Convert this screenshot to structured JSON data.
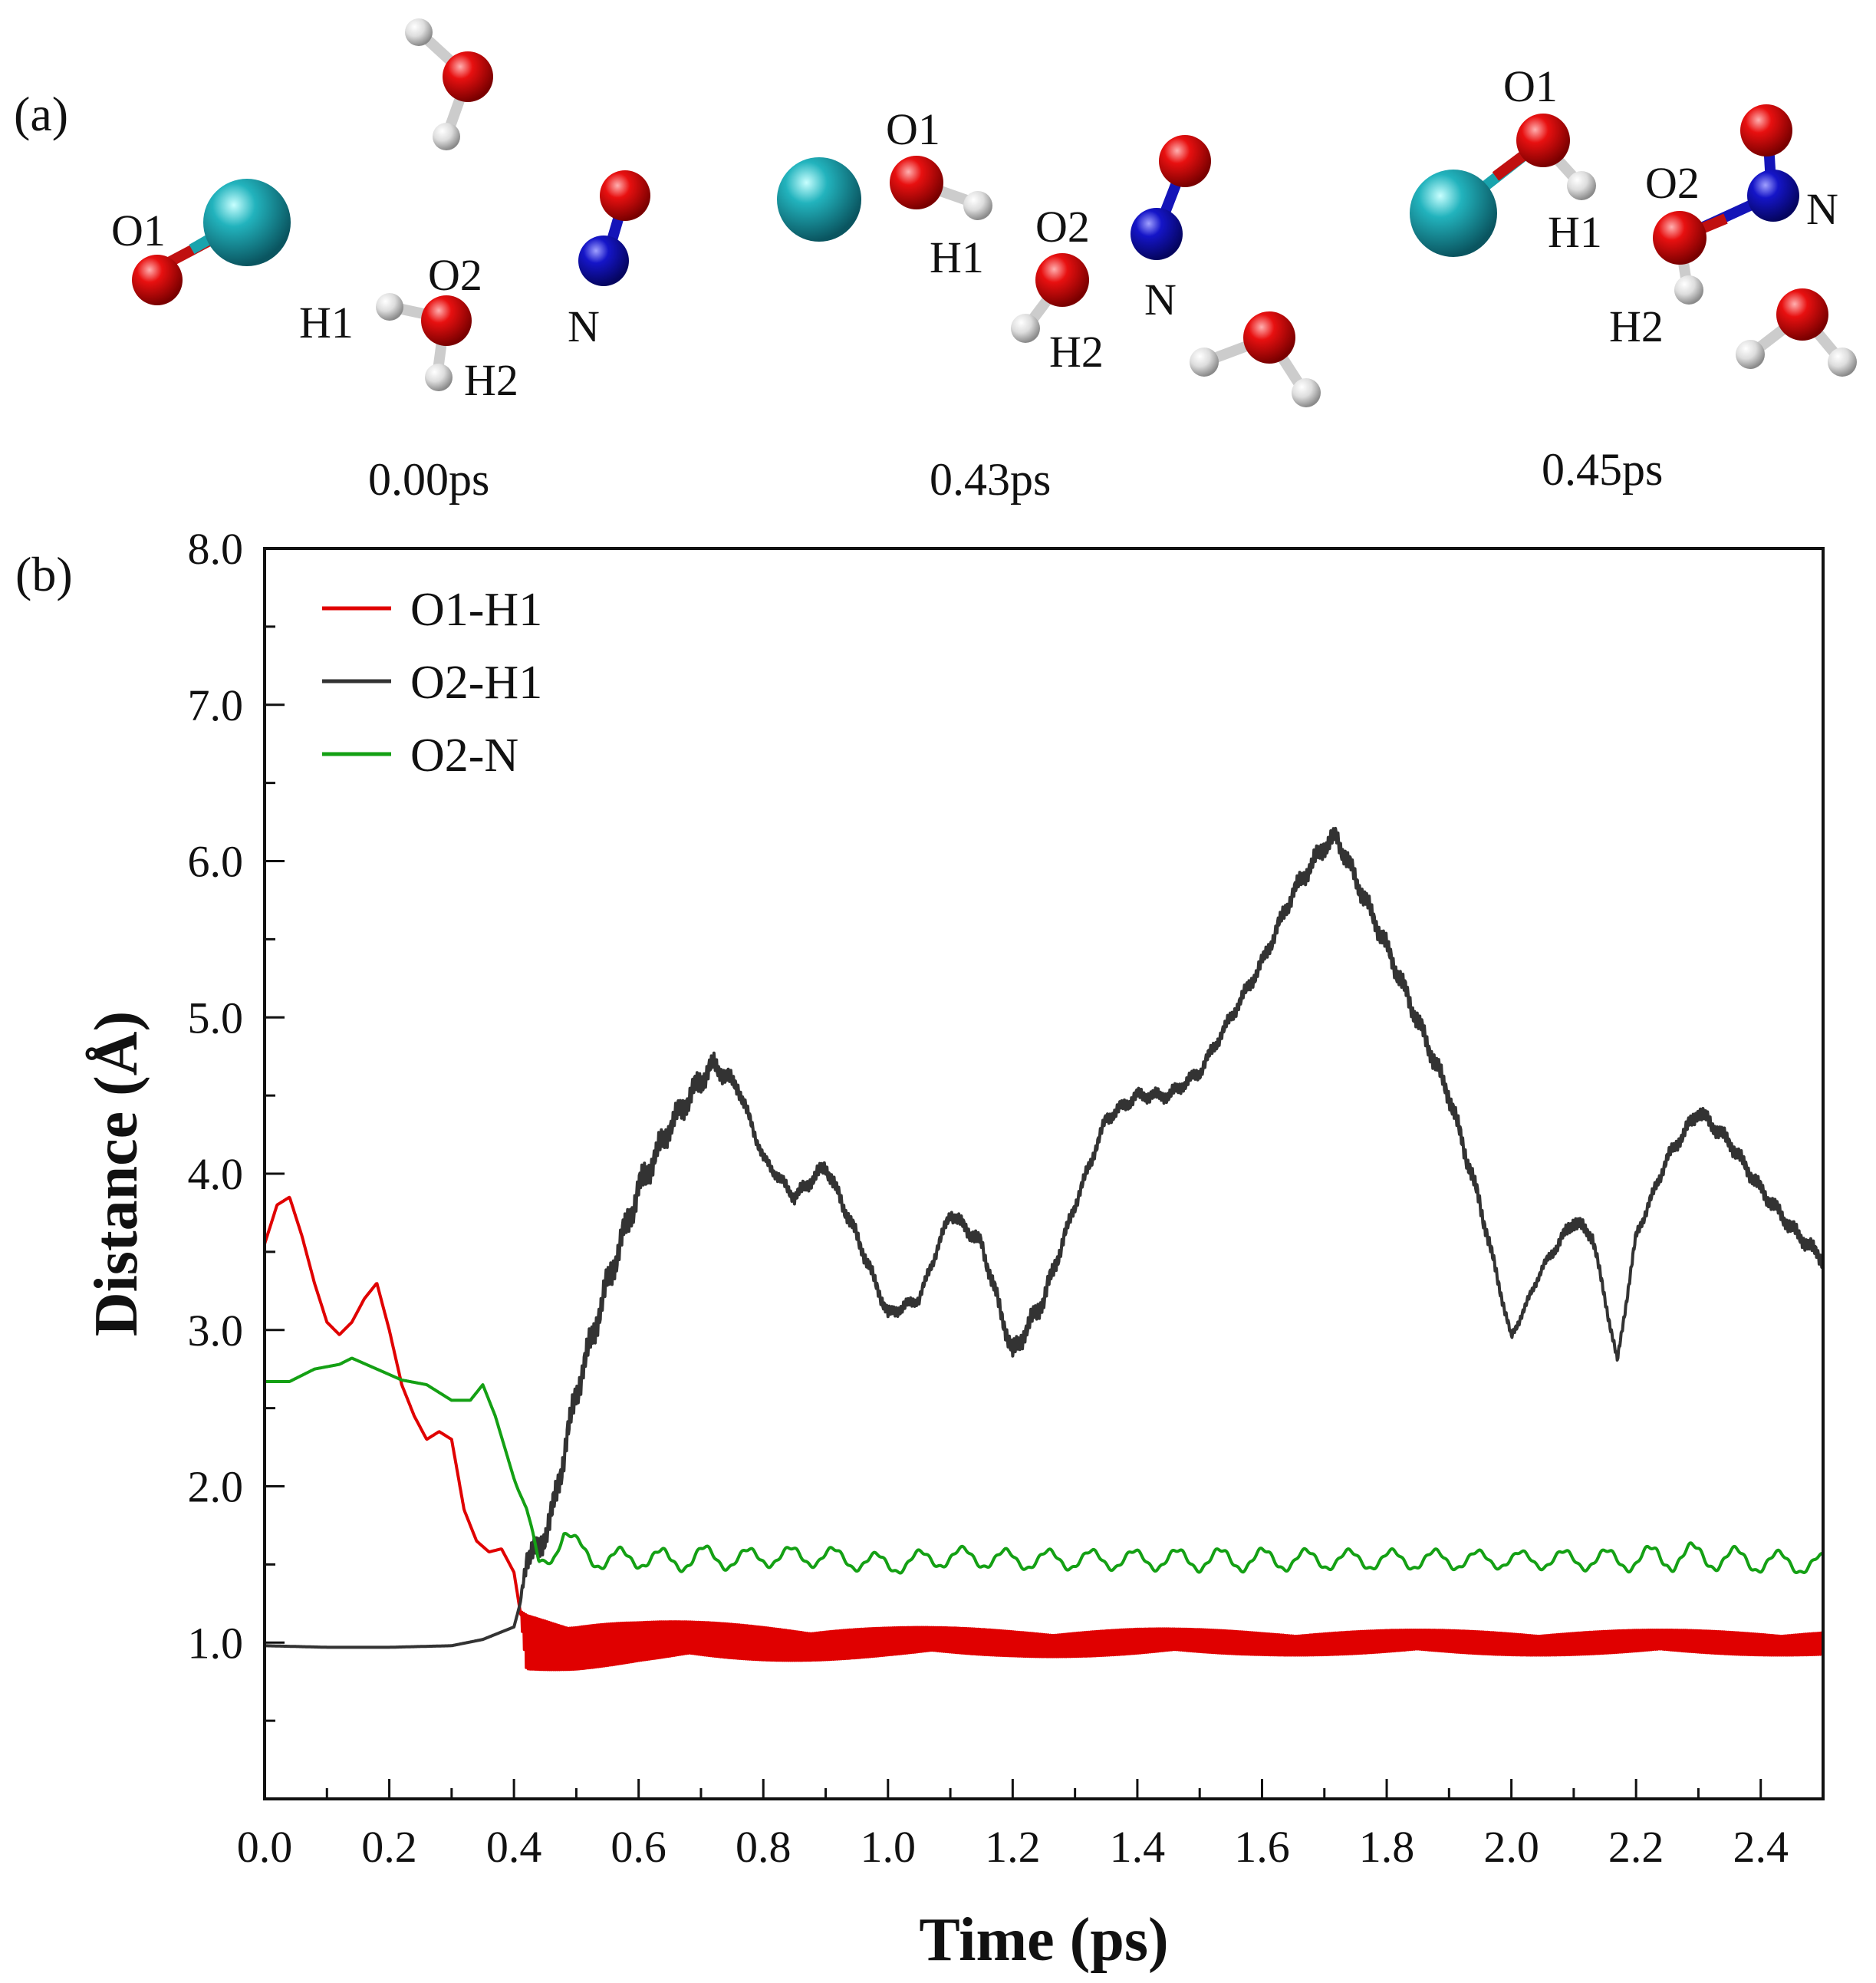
{
  "panel_a": {
    "label": "(a)",
    "colors": {
      "oxygen": "#d90b0b",
      "hydrogen": "#e8e8e8",
      "nitrogen": "#1414b8",
      "metal": "#19a3ad"
    },
    "snapshots": [
      {
        "time": "0.00ps",
        "labels": {
          "o1": "O1",
          "o2": "O2",
          "h1": "H1",
          "h2": "H2",
          "n": "N"
        }
      },
      {
        "time": "0.43ps",
        "labels": {
          "o1": "O1",
          "o2": "O2",
          "h1": "H1",
          "h2": "H2",
          "n": "N"
        }
      },
      {
        "time": "0.45ps",
        "labels": {
          "o1": "O1",
          "o2": "O2",
          "h1": "H1",
          "h2": "H2",
          "n": "N"
        }
      }
    ]
  },
  "panel_b": {
    "label": "(b)"
  },
  "chart_data": {
    "type": "line",
    "title": "",
    "xlabel": "Time (ps)",
    "ylabel": "Distance (Å)",
    "xlim": [
      0.0,
      2.5
    ],
    "ylim": [
      0.0,
      8.0
    ],
    "xticks": [
      "0.0",
      "0.2",
      "0.4",
      "0.6",
      "0.8",
      "1.0",
      "1.2",
      "1.4",
      "1.6",
      "1.8",
      "2.0",
      "2.2",
      "2.4"
    ],
    "yticks": [
      "1.0",
      "2.0",
      "3.0",
      "4.0",
      "5.0",
      "6.0",
      "7.0",
      "8.0"
    ],
    "legend_position": "top-left",
    "series": [
      {
        "name": "O1-H1",
        "color": "#e00000",
        "x": [
          0.0,
          0.02,
          0.04,
          0.06,
          0.08,
          0.1,
          0.12,
          0.14,
          0.16,
          0.18,
          0.2,
          0.22,
          0.24,
          0.26,
          0.28,
          0.3,
          0.32,
          0.34,
          0.36,
          0.38,
          0.4,
          0.41,
          0.42,
          0.5,
          0.6,
          0.8,
          1.0,
          1.2,
          1.4,
          1.6,
          1.8,
          2.0,
          2.2,
          2.4,
          2.5
        ],
        "y": [
          3.55,
          3.8,
          3.85,
          3.6,
          3.3,
          3.05,
          2.97,
          3.05,
          3.2,
          3.3,
          3.0,
          2.65,
          2.45,
          2.3,
          2.35,
          2.3,
          1.85,
          1.65,
          1.58,
          1.6,
          1.45,
          1.2,
          1.02,
          1.0,
          1.0,
          1.0,
          1.0,
          1.0,
          1.0,
          1.0,
          1.0,
          1.0,
          1.0,
          1.0,
          1.0
        ],
        "oscillation": [
          0,
          0,
          0,
          0,
          0,
          0,
          0,
          0,
          0,
          0,
          0,
          0,
          0,
          0,
          0,
          0,
          0,
          0,
          0,
          0,
          0,
          0,
          0.2,
          0.17,
          0.14,
          0.12,
          0.1,
          0.09,
          0.09,
          0.08,
          0.08,
          0.08,
          0.08,
          0.08,
          0.08
        ]
      },
      {
        "name": "O2-H1",
        "color": "#333333",
        "x": [
          0.0,
          0.1,
          0.2,
          0.3,
          0.35,
          0.4,
          0.41,
          0.42,
          0.44,
          0.46,
          0.5,
          0.55,
          0.6,
          0.65,
          0.7,
          0.72,
          0.76,
          0.8,
          0.85,
          0.9,
          0.95,
          1.0,
          1.05,
          1.1,
          1.15,
          1.2,
          1.25,
          1.3,
          1.35,
          1.4,
          1.45,
          1.5,
          1.55,
          1.6,
          1.65,
          1.7,
          1.72,
          1.8,
          1.9,
          1.95,
          2.0,
          2.05,
          2.1,
          2.13,
          2.17,
          2.2,
          2.25,
          2.3,
          2.35,
          2.4,
          2.45,
          2.5
        ],
        "y": [
          0.98,
          0.97,
          0.97,
          0.98,
          1.02,
          1.1,
          1.25,
          1.55,
          1.6,
          1.8,
          2.6,
          3.3,
          3.9,
          4.3,
          4.6,
          4.7,
          4.55,
          4.1,
          3.85,
          4.05,
          3.6,
          3.1,
          3.2,
          3.75,
          3.55,
          2.85,
          3.2,
          3.8,
          4.35,
          4.5,
          4.5,
          4.65,
          5.0,
          5.35,
          5.8,
          6.1,
          6.15,
          5.45,
          4.5,
          3.8,
          2.95,
          3.4,
          3.7,
          3.6,
          2.8,
          3.6,
          4.1,
          4.4,
          4.2,
          3.9,
          3.65,
          3.45
        ],
        "oscillation": [
          0,
          0,
          0,
          0,
          0,
          0,
          0,
          0.1,
          0.1,
          0.12,
          0.12,
          0.12,
          0.12,
          0.1,
          0.1,
          0.08,
          0.06,
          0.04,
          0.05,
          0.06,
          0.06,
          0.05,
          0.04,
          0.05,
          0.06,
          0.08,
          0.08,
          0.05,
          0.05,
          0.05,
          0.05,
          0.05,
          0.05,
          0.06,
          0.07,
          0.08,
          0.08,
          0.08,
          0.08,
          0.07,
          0.03,
          0.03,
          0.06,
          0.05,
          0.03,
          0.04,
          0.05,
          0.06,
          0.06,
          0.06,
          0.06,
          0.06
        ]
      },
      {
        "name": "O2-N",
        "color": "#14a014",
        "x": [
          0.0,
          0.04,
          0.08,
          0.12,
          0.14,
          0.18,
          0.22,
          0.26,
          0.3,
          0.33,
          0.35,
          0.37,
          0.4,
          0.42,
          0.44,
          0.46,
          0.48,
          0.5,
          0.55,
          0.6,
          0.65,
          0.7,
          0.75,
          0.8,
          0.9,
          1.0,
          1.1,
          1.2,
          1.3,
          1.4,
          1.5,
          1.6,
          1.7,
          1.8,
          1.9,
          2.0,
          2.1,
          2.2,
          2.25,
          2.3,
          2.4,
          2.5
        ],
        "y": [
          2.67,
          2.67,
          2.75,
          2.78,
          2.82,
          2.75,
          2.68,
          2.65,
          2.55,
          2.55,
          2.65,
          2.45,
          2.05,
          1.85,
          1.5,
          1.55,
          1.7,
          1.6,
          1.52,
          1.55,
          1.52,
          1.55,
          1.53,
          1.55,
          1.55,
          1.5,
          1.55,
          1.53,
          1.53,
          1.53,
          1.53,
          1.53,
          1.53,
          1.53,
          1.53,
          1.53,
          1.53,
          1.53,
          1.55,
          1.55,
          1.52,
          1.5
        ],
        "oscillation": [
          0,
          0,
          0,
          0,
          0,
          0,
          0,
          0,
          0,
          0,
          0,
          0,
          0,
          0.03,
          0.04,
          0.05,
          0.06,
          0.08,
          0.08,
          0.08,
          0.08,
          0.08,
          0.07,
          0.07,
          0.07,
          0.07,
          0.07,
          0.07,
          0.07,
          0.07,
          0.08,
          0.08,
          0.07,
          0.07,
          0.07,
          0.06,
          0.07,
          0.08,
          0.1,
          0.09,
          0.08,
          0.07
        ]
      }
    ]
  }
}
